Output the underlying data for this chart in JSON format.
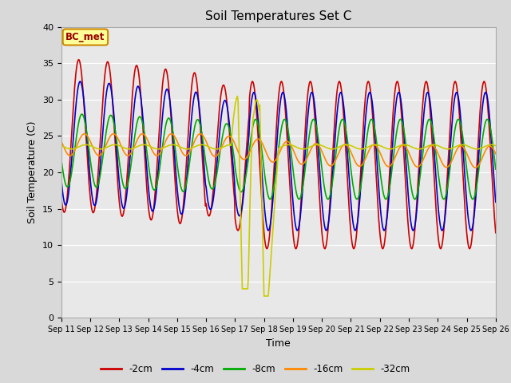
{
  "title": "Soil Temperatures Set C",
  "xlabel": "Time",
  "ylabel": "Soil Temperature (C)",
  "ylim": [
    0,
    40
  ],
  "background_color": "#d9d9d9",
  "plot_bg_color": "#e8e8e8",
  "annotation_label": "BC_met",
  "annotation_bg": "#ffff99",
  "annotation_border": "#cc8800",
  "annotation_text_color": "#990000",
  "tick_labels": [
    "Sep 11",
    "Sep 12",
    "Sep 13",
    "Sep 14",
    "Sep 15",
    "Sep 16",
    "Sep 17",
    "Sep 18",
    "Sep 19",
    "Sep 20",
    "Sep 21",
    "Sep 22",
    "Sep 23",
    "Sep 24",
    "Sep 25",
    "Sep 26"
  ],
  "series_colors": [
    "#cc0000",
    "#0000cc",
    "#00aa00",
    "#ff8800",
    "#cccc00"
  ],
  "series_labels": [
    "-2cm",
    "-4cm",
    "-8cm",
    "-16cm",
    "-32cm"
  ]
}
